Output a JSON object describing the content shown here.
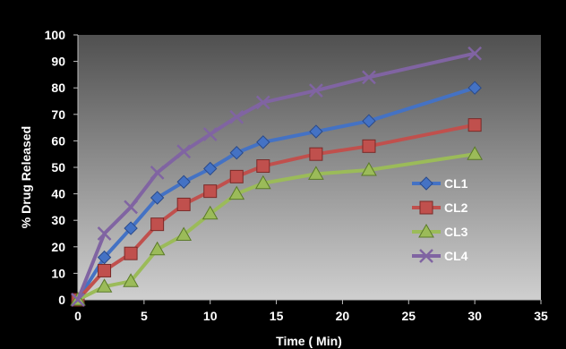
{
  "chart_data": {
    "type": "line",
    "title": "",
    "xlabel": "Time ( Min)",
    "ylabel": "% Drug Released",
    "xlim": [
      0,
      35
    ],
    "ylim": [
      0,
      100
    ],
    "xticks": [
      0,
      5,
      10,
      15,
      20,
      25,
      30,
      35
    ],
    "yticks": [
      0,
      10,
      20,
      30,
      40,
      50,
      60,
      70,
      80,
      90,
      100
    ],
    "grid": false,
    "legend_position": "right",
    "x": [
      0,
      2,
      4,
      6,
      8,
      10,
      12,
      14,
      18,
      22,
      30
    ],
    "series": [
      {
        "name": "CL1",
        "color": "#4472c4",
        "marker": "diamond",
        "values": [
          0,
          16,
          27,
          38.5,
          44.5,
          49.5,
          55.5,
          59.5,
          63.5,
          67.5,
          80
        ]
      },
      {
        "name": "CL2",
        "color": "#c0504d",
        "marker": "square",
        "values": [
          0,
          11,
          17.5,
          28.5,
          36,
          41,
          46.5,
          50.5,
          55,
          58,
          66
        ]
      },
      {
        "name": "CL3",
        "color": "#9bbb59",
        "marker": "triangle",
        "values": [
          0,
          5,
          7,
          19,
          24.5,
          32.5,
          40,
          44,
          47.5,
          49,
          55
        ]
      },
      {
        "name": "CL4",
        "color": "#8064a2",
        "marker": "x",
        "values": [
          0,
          25,
          35,
          48,
          56,
          62.5,
          69,
          74.5,
          79,
          84,
          93
        ]
      }
    ]
  }
}
